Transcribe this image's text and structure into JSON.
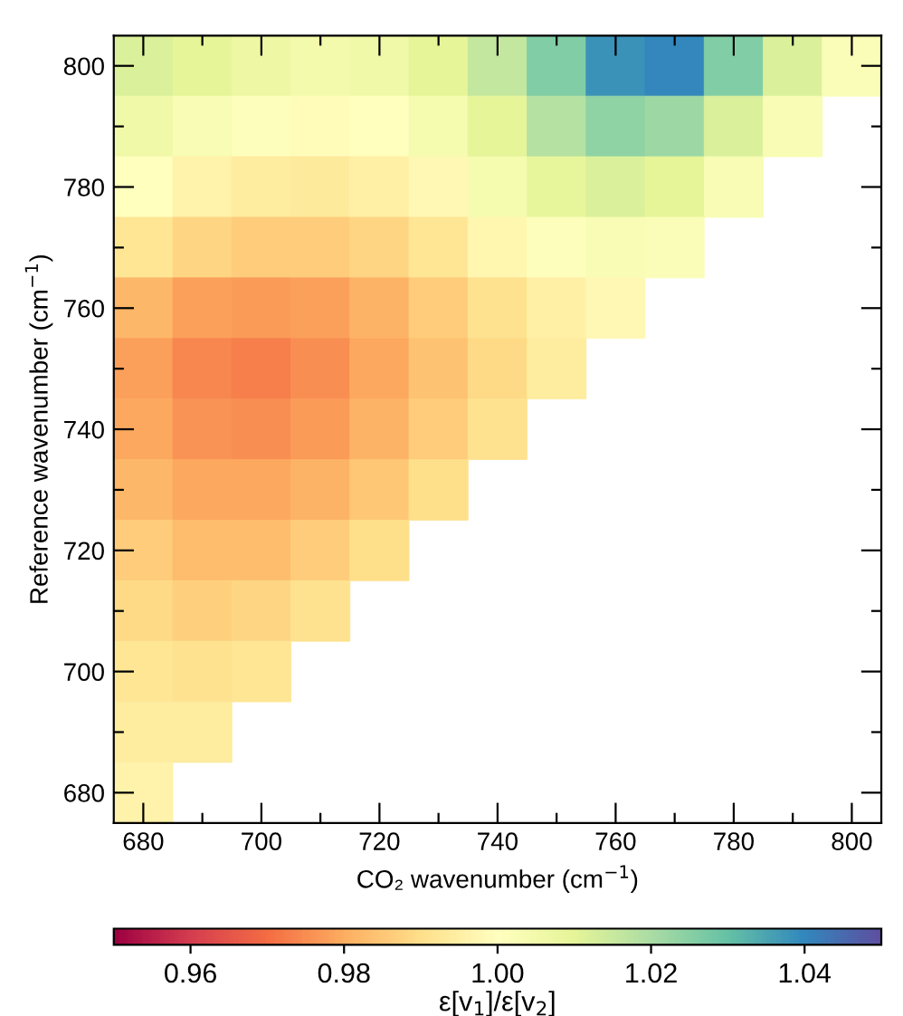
{
  "chart_data": {
    "type": "heatmap",
    "xlabel": "CO₂ wavenumber (cm$^{−1}$)",
    "ylabel": "Reference wavenumber (cm$^{−1}$)",
    "clabel": "ε[v$_{1}$]/ε[v$_{2}$]",
    "categories": [
      "680",
      null,
      "700",
      null,
      "720",
      null,
      "740",
      null,
      "760",
      null,
      "780",
      null,
      "800"
    ],
    "y_categories": [
      "800",
      null,
      "780",
      null,
      "760",
      null,
      "740",
      null,
      "720",
      null,
      "700",
      null,
      "680"
    ],
    "cells": [
      [
        1.012,
        1.01,
        1.007,
        1.005,
        1.006,
        1.01,
        1.016,
        1.026,
        1.038,
        1.04,
        1.026,
        1.012,
        1.002
      ],
      [
        1.006,
        1.003,
        1.001,
        0.999,
        1.0,
        1.004,
        1.01,
        1.018,
        1.024,
        1.022,
        1.012,
        1.003,
        null
      ],
      [
        1.0,
        0.996,
        0.994,
        0.993,
        0.995,
        0.998,
        1.004,
        1.009,
        1.012,
        1.01,
        1.003,
        null,
        null
      ],
      [
        0.992,
        0.988,
        0.986,
        0.986,
        0.988,
        0.992,
        0.997,
        1.001,
        1.003,
        1.002,
        null,
        null,
        null
      ],
      [
        0.982,
        0.978,
        0.977,
        0.978,
        0.981,
        0.986,
        0.991,
        0.995,
        0.998,
        null,
        null,
        null,
        null
      ],
      [
        0.978,
        0.974,
        0.973,
        0.975,
        0.979,
        0.984,
        0.989,
        0.994,
        null,
        null,
        null,
        null,
        null
      ],
      [
        0.979,
        0.976,
        0.975,
        0.977,
        0.981,
        0.986,
        0.991,
        null,
        null,
        null,
        null,
        null,
        null
      ],
      [
        0.982,
        0.979,
        0.979,
        0.981,
        0.985,
        0.99,
        null,
        null,
        null,
        null,
        null,
        null,
        null
      ],
      [
        0.986,
        0.983,
        0.983,
        0.986,
        0.99,
        null,
        null,
        null,
        null,
        null,
        null,
        null,
        null
      ],
      [
        0.989,
        0.987,
        0.988,
        0.991,
        null,
        null,
        null,
        null,
        null,
        null,
        null,
        null,
        null
      ],
      [
        0.992,
        0.991,
        0.992,
        null,
        null,
        null,
        null,
        null,
        null,
        null,
        null,
        null,
        null
      ],
      [
        0.994,
        0.994,
        null,
        null,
        null,
        null,
        null,
        null,
        null,
        null,
        null,
        null,
        null
      ],
      [
        0.996,
        null,
        null,
        null,
        null,
        null,
        null,
        null,
        null,
        null,
        null,
        null,
        null
      ]
    ],
    "clim": [
      0.95,
      1.05
    ],
    "cticks": [
      {
        "value": 0.96,
        "label": "0.96"
      },
      {
        "value": 0.98,
        "label": "0.98"
      },
      {
        "value": 1.0,
        "label": "1.00"
      },
      {
        "value": 1.02,
        "label": "1.02"
      },
      {
        "value": 1.04,
        "label": "1.04"
      }
    ]
  }
}
